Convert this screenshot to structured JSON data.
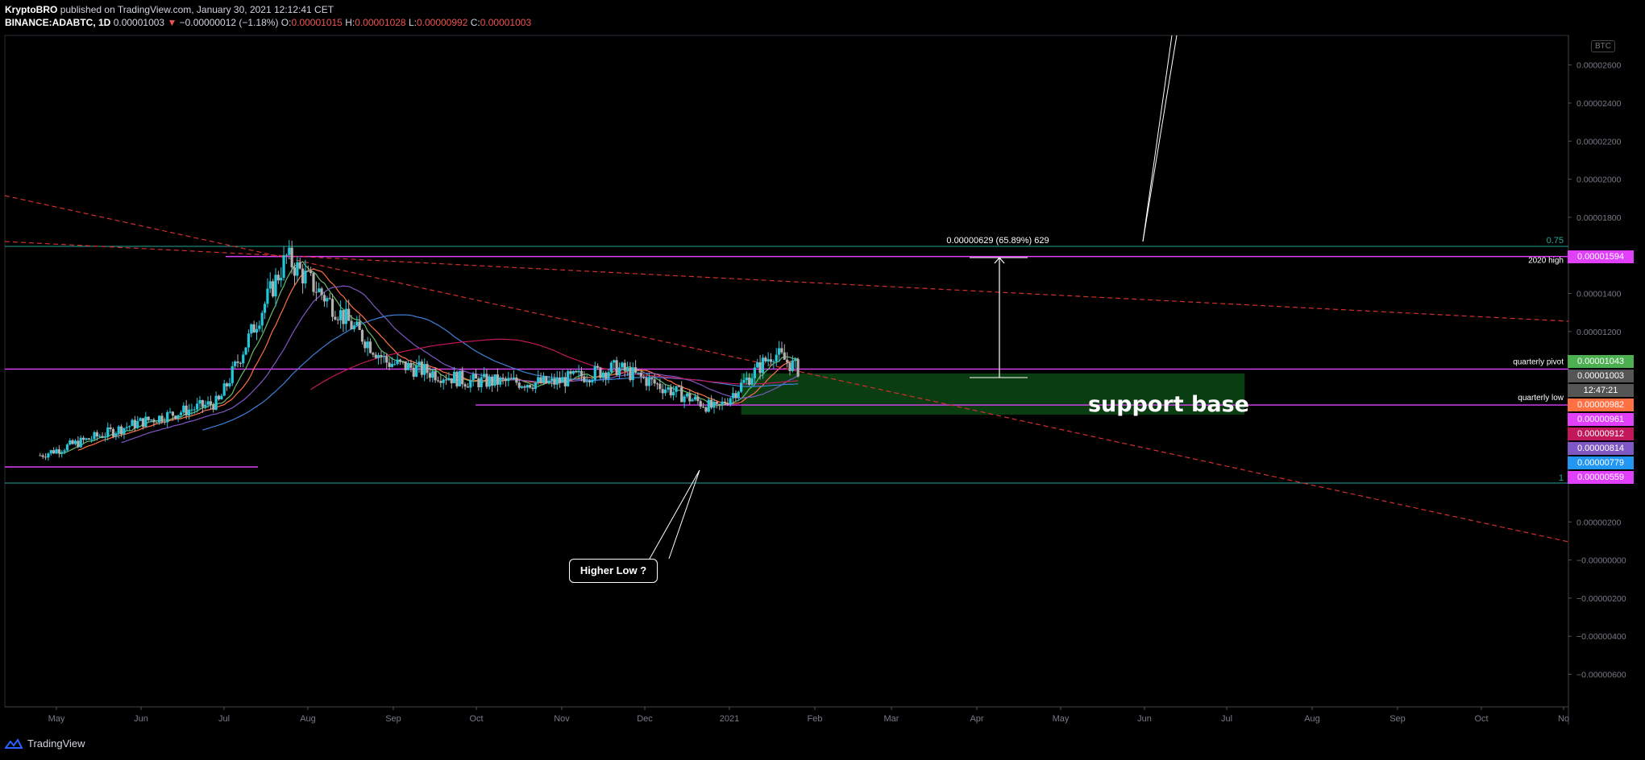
{
  "header": {
    "author": "KryptoBRO",
    "published": "published on TradingView.com, January 30, 2021 12:12:41 CET",
    "symbol": "BINANCE:ADABTC, 1D",
    "last": "0.00001003",
    "change": "−0.00000012 (−1.18%)",
    "o_label": "O:",
    "o": "0.00001015",
    "h_label": "H:",
    "h": "0.00001028",
    "l_label": "L:",
    "l": "0.00000992",
    "c_label": "C:",
    "c": "0.00001003"
  },
  "axis_currency": "BTC",
  "footer": {
    "brand": "TradingView"
  },
  "colors": {
    "up": "#26c6da",
    "down": "#b0b0b0",
    "magenta": "#e040fb",
    "redline": "#d32f2f",
    "green_zone": "#0a3d12",
    "ma_orange": "#ff7043",
    "ma_green": "#66bb6a",
    "ma_blue": "#3f7fd6",
    "ma_purple": "#7e57c2",
    "ma_red": "#c2185b",
    "ma_teal": "#26a69a"
  },
  "chart_data": {
    "type": "candlestick",
    "symbol": "BINANCE:ADABTC",
    "interval": "1D",
    "x_ticks": [
      "May",
      "Jun",
      "Jul",
      "Aug",
      "Sep",
      "Oct",
      "Nov",
      "Dec",
      "2021",
      "Feb",
      "Mar",
      "Apr",
      "May",
      "Jun",
      "Jul",
      "Aug",
      "Sep",
      "Oct",
      "No"
    ],
    "y_ticks": [
      "0.00002600",
      "0.00002400",
      "0.00002200",
      "0.00002000",
      "0.00001800",
      "0.00001400",
      "0.00001200",
      "0.00000200",
      "−0.00000000",
      "−0.00000200",
      "−0.00000400",
      "−0.00000600"
    ],
    "ylim": [
      -7.5e-06,
      2.78e-05
    ],
    "key_points": [
      {
        "date": "2020-04-25",
        "close": 5.5e-06
      },
      {
        "date": "2020-05-31",
        "close": 7.2e-06
      },
      {
        "date": "2020-06-30",
        "close": 8.3e-06
      },
      {
        "date": "2020-07-25",
        "close": 1.59e-05
      },
      {
        "date": "2020-08-31",
        "close": 1.04e-05
      },
      {
        "date": "2020-09-30",
        "close": 9.4e-06
      },
      {
        "date": "2020-10-31",
        "close": 9.3e-06
      },
      {
        "date": "2020-11-24",
        "close": 1.01e-05
      },
      {
        "date": "2020-12-31",
        "close": 7.9e-06
      },
      {
        "date": "2021-01-21",
        "close": 1.09e-05
      },
      {
        "date": "2021-01-30",
        "close": 1.003e-05
      }
    ],
    "levels": [
      {
        "label": "2020 high",
        "value": "0.00001594"
      },
      {
        "label": "quarterly pivot",
        "value": "0.00001003"
      },
      {
        "label": "quarterly low",
        "value": "0.00000814"
      }
    ],
    "fib_labels": [
      "0.75",
      "1"
    ],
    "measure_label": "0.00000629 (65.89%) 629",
    "annotations": [
      "support base",
      "Higher Low ?"
    ],
    "price_tags": [
      {
        "value": "0.00001594",
        "color": "#e040fb"
      },
      {
        "value": "0.00001043",
        "color": "#4caf50"
      },
      {
        "value": "0.00001003",
        "color": "#555555"
      },
      {
        "value": "12:47:21",
        "color": "#555555"
      },
      {
        "value": "0.00000982",
        "color": "#ff7043"
      },
      {
        "value": "0.00000961",
        "color": "#e040fb"
      },
      {
        "value": "0.00000912",
        "color": "#c2185b"
      },
      {
        "value": "0.00000814",
        "color": "#7e57c2"
      },
      {
        "value": "0.00000779",
        "color": "#2196f3"
      },
      {
        "value": "0.00000559",
        "color": "#e040fb"
      }
    ]
  }
}
